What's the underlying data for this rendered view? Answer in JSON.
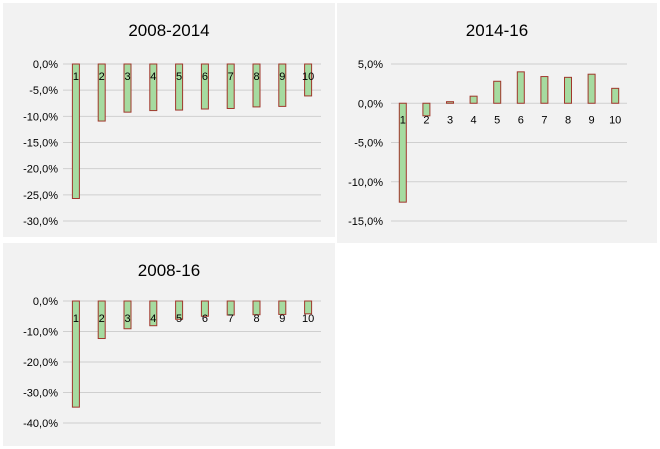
{
  "chart_data": [
    {
      "type": "bar",
      "title": "2008-2014",
      "categories": [
        "1",
        "2",
        "3",
        "4",
        "5",
        "6",
        "7",
        "8",
        "9",
        "10"
      ],
      "values": [
        -25.7,
        -10.9,
        -9.2,
        -8.9,
        -8.8,
        -8.6,
        -8.5,
        -8.2,
        -8.1,
        -6.1
      ],
      "ylim": [
        -30,
        0
      ],
      "yticks": [
        "0,0%",
        "-5,0%",
        "-10,0%",
        "-15,0%",
        "-20,0%",
        "-25,0%",
        "-30,0%"
      ],
      "ytick_values": [
        0,
        -5,
        -10,
        -15,
        -20,
        -25,
        -30
      ],
      "grid": true,
      "colors": {
        "fill": "#a6dba0",
        "stroke": "#a0372c"
      }
    },
    {
      "type": "bar",
      "title": "2014-16",
      "categories": [
        "1",
        "2",
        "3",
        "4",
        "5",
        "6",
        "7",
        "8",
        "9",
        "10"
      ],
      "values": [
        -12.6,
        -1.6,
        0.2,
        0.9,
        2.8,
        4.0,
        3.4,
        3.3,
        3.7,
        1.9
      ],
      "ylim": [
        -15,
        5
      ],
      "yticks": [
        "5,0%",
        "0,0%",
        "-5,0%",
        "-10,0%",
        "-15,0%"
      ],
      "ytick_values": [
        5,
        0,
        -5,
        -10,
        -15
      ],
      "grid": true,
      "colors": {
        "fill": "#a6dba0",
        "stroke": "#a0372c"
      }
    },
    {
      "type": "bar",
      "title": "2008-16",
      "categories": [
        "1",
        "2",
        "3",
        "4",
        "5",
        "6",
        "7",
        "8",
        "9",
        "10"
      ],
      "values": [
        -34.8,
        -12.3,
        -9.1,
        -8.1,
        -6.0,
        -5.0,
        -4.6,
        -4.5,
        -4.4,
        -4.2
      ],
      "ylim": [
        -40,
        0
      ],
      "yticks": [
        "0,0%",
        "-10,0%",
        "-20,0%",
        "-30,0%",
        "-40,0%"
      ],
      "ytick_values": [
        0,
        -10,
        -20,
        -30,
        -40
      ],
      "grid": true,
      "colors": {
        "fill": "#a6dba0",
        "stroke": "#a0372c"
      }
    }
  ]
}
